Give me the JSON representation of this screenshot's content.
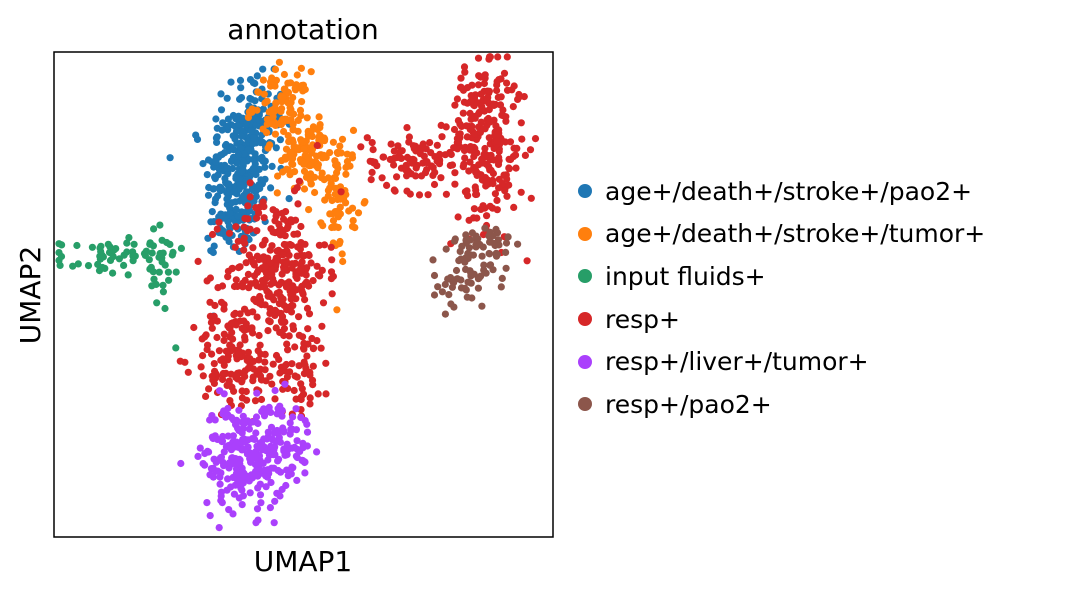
{
  "chart_data": {
    "type": "scatter",
    "title": "annotation",
    "xlabel": "UMAP1",
    "ylabel": "UMAP2",
    "xlim": [
      0,
      100
    ],
    "ylim": [
      0,
      100
    ],
    "x_ticks": "none",
    "y_ticks": "none",
    "grid": false,
    "legend_position": "right",
    "series": [
      {
        "name": "age+/death+/stroke+/pao2+",
        "color": "#1f77b4",
        "clusters": [
          {
            "cx": 37.4,
            "cy": 74.9,
            "sx": 3.5,
            "sy": 7.0,
            "n": 230
          },
          {
            "cx": 40.0,
            "cy": 86.0,
            "sx": 3.0,
            "sy": 4.5,
            "n": 110
          },
          {
            "cx": 35.0,
            "cy": 63.5,
            "sx": 2.2,
            "sy": 2.5,
            "n": 40
          }
        ]
      },
      {
        "name": "age+/death+/stroke+/tumor+",
        "color": "#ff7f0e",
        "clusters": [
          {
            "cx": 45.5,
            "cy": 89.0,
            "sx": 2.8,
            "sy": 3.5,
            "n": 90
          },
          {
            "cx": 51.0,
            "cy": 78.5,
            "sx": 3.0,
            "sy": 4.0,
            "n": 110
          },
          {
            "cx": 57.5,
            "cy": 70.0,
            "sx": 1.6,
            "sy": 6.0,
            "n": 60
          }
        ]
      },
      {
        "name": "input fluids+",
        "color": "#279e68",
        "clusters": [
          {
            "cx": 10.0,
            "cy": 57.5,
            "sx": 4.5,
            "sy": 1.8,
            "n": 45
          },
          {
            "cx": 21.0,
            "cy": 55.5,
            "sx": 2.5,
            "sy": 5.5,
            "n": 35
          }
        ]
      },
      {
        "name": "resp+",
        "color": "#d62728",
        "clusters": [
          {
            "cx": 44.5,
            "cy": 55.0,
            "sx": 5.0,
            "sy": 7.5,
            "n": 280
          },
          {
            "cx": 36.0,
            "cy": 37.0,
            "sx": 4.0,
            "sy": 5.5,
            "n": 120
          },
          {
            "cx": 48.0,
            "cy": 34.5,
            "sx": 4.0,
            "sy": 4.5,
            "n": 70
          },
          {
            "cx": 72.0,
            "cy": 77.5,
            "sx": 4.5,
            "sy": 3.0,
            "n": 90
          },
          {
            "cx": 86.5,
            "cy": 80.0,
            "sx": 4.0,
            "sy": 8.0,
            "n": 220
          },
          {
            "cx": 86.0,
            "cy": 91.0,
            "sx": 2.5,
            "sy": 3.5,
            "n": 50
          }
        ]
      },
      {
        "name": "resp+/liver+/tumor+",
        "color": "#aa40fc",
        "clusters": [
          {
            "cx": 38.0,
            "cy": 16.5,
            "sx": 4.2,
            "sy": 5.5,
            "n": 220
          },
          {
            "cx": 46.0,
            "cy": 20.0,
            "sx": 3.0,
            "sy": 4.0,
            "n": 70
          }
        ]
      },
      {
        "name": "resp+/pao2+",
        "color": "#8c564b",
        "clusters": [
          {
            "cx": 86.0,
            "cy": 59.5,
            "sx": 2.8,
            "sy": 3.0,
            "n": 55
          },
          {
            "cx": 82.0,
            "cy": 52.5,
            "sx": 3.0,
            "sy": 2.5,
            "n": 45
          }
        ]
      }
    ]
  }
}
